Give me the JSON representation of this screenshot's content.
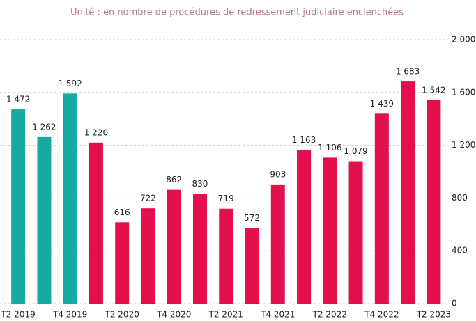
{
  "chart_data": {
    "type": "bar",
    "subtitle": "Unité : en nombre de procédures de redressement judiciaire enclenchées",
    "categories": [
      "T2 2019",
      null,
      "T4 2019",
      null,
      "T2 2020",
      null,
      "T4 2020",
      null,
      "T2 2021",
      null,
      "T4 2021",
      null,
      "T2 2022",
      null,
      "T4 2022",
      null,
      "T2 2023"
    ],
    "values": [
      1472,
      1262,
      1592,
      1220,
      616,
      722,
      862,
      830,
      719,
      572,
      903,
      1163,
      1106,
      1079,
      1439,
      1683,
      1542
    ],
    "value_labels": [
      "1 472",
      "1 262",
      "1 592",
      "1 220",
      "616",
      "722",
      "862",
      "830",
      "719",
      "572",
      "903",
      "1 163",
      "1 106",
      "1 079",
      "1 439",
      "1 683",
      "1 542"
    ],
    "colors": [
      "#17aaa3",
      "#17aaa3",
      "#17aaa3",
      "#e3104c",
      "#e3104c",
      "#e3104c",
      "#e3104c",
      "#e3104c",
      "#e3104c",
      "#e3104c",
      "#e3104c",
      "#e3104c",
      "#e3104c",
      "#e3104c",
      "#e3104c",
      "#e3104c",
      "#e3104c"
    ],
    "ylim": [
      0,
      2000
    ],
    "yticks": [
      0,
      400,
      800,
      {
        "value": 1200,
        "label": "1 200"
      },
      {
        "value": 1600,
        "label": "1 600"
      },
      {
        "value": 2000,
        "label": "2 000"
      }
    ],
    "grid": true
  }
}
